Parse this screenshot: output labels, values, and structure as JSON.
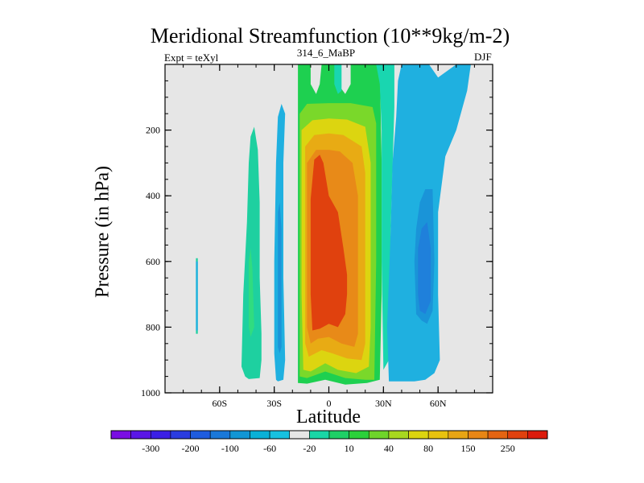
{
  "title": "Meridional Streamfunction (10**9kg/m-2)",
  "left_subtitle": "Expt = teXyl",
  "center_subtitle": "314_6_MaBP",
  "right_subtitle": "DJF",
  "chart_data": {
    "type": "heatmap",
    "subtype": "filled-contour",
    "xlabel": "Latitude",
    "ylabel": "Pressure (in hPa)",
    "xlim": [
      -90,
      90
    ],
    "ylim": [
      1000,
      0
    ],
    "x_ticks": [
      {
        "value": -60,
        "label": "60S"
      },
      {
        "value": -30,
        "label": "30S"
      },
      {
        "value": 0,
        "label": "0"
      },
      {
        "value": 30,
        "label": "30N"
      },
      {
        "value": 60,
        "label": "60N"
      }
    ],
    "y_ticks": [
      {
        "value": 200,
        "label": "200"
      },
      {
        "value": 400,
        "label": "400"
      },
      {
        "value": 600,
        "label": "600"
      },
      {
        "value": 800,
        "label": "800"
      },
      {
        "value": 1000,
        "label": "1000"
      }
    ],
    "background_color": "#e6e6e6",
    "colorbar": {
      "orientation": "horizontal",
      "levels": [
        "-300",
        "-200",
        "-100",
        "-60",
        "-20",
        "10",
        "40",
        "80",
        "150",
        "250"
      ],
      "colors": [
        "#7a0ee3",
        "#5a16e6",
        "#3b1fe5",
        "#2a3ce0",
        "#1f5cdf",
        "#1a78d9",
        "#1296d4",
        "#0ab1d6",
        "#17c1e0",
        "#e6e6e6",
        "#19d6a6",
        "#1ed066",
        "#2bd13a",
        "#6ed52a",
        "#a8d81f",
        "#dcd510",
        "#e8c20e",
        "#e8a514",
        "#e88615",
        "#e46412",
        "#e0410e",
        "#dc1b0c"
      ]
    },
    "contours": [
      {
        "name": "band-60S-outer",
        "color": "#1ed0a0",
        "points": [
          [
            -73,
            590
          ],
          [
            -72,
            590
          ],
          [
            -72,
            820
          ],
          [
            -73,
            820
          ]
        ]
      },
      {
        "name": "band-60S-inner",
        "color": "#1fb0e0",
        "points": [
          [
            -73,
            600
          ],
          [
            -72,
            600
          ],
          [
            -72,
            810
          ],
          [
            -73,
            810
          ]
        ]
      },
      {
        "name": "band-40S-outer",
        "color": "#1ed0a0",
        "points": [
          [
            -46,
            950
          ],
          [
            -48,
            920
          ],
          [
            -47,
            700
          ],
          [
            -45,
            480
          ],
          [
            -44,
            300
          ],
          [
            -43,
            220
          ],
          [
            -41,
            190
          ],
          [
            -39,
            260
          ],
          [
            -38,
            420
          ],
          [
            -38,
            650
          ],
          [
            -37,
            820
          ],
          [
            -37,
            900
          ],
          [
            -38,
            955
          ],
          [
            -44,
            958
          ]
        ]
      },
      {
        "name": "band-40S-inner",
        "color": "#30dc80",
        "points": [
          [
            -44,
            800
          ],
          [
            -44,
            600
          ],
          [
            -43,
            560
          ],
          [
            -42,
            620
          ],
          [
            -41,
            800
          ],
          [
            -43,
            830
          ]
        ]
      },
      {
        "name": "band-25S-outer",
        "color": "#1fb0e0",
        "points": [
          [
            -29,
            960
          ],
          [
            -30,
            880
          ],
          [
            -30,
            600
          ],
          [
            -29,
            300
          ],
          [
            -28,
            160
          ],
          [
            -26,
            120
          ],
          [
            -24,
            150
          ],
          [
            -25,
            300
          ],
          [
            -25,
            650
          ],
          [
            -24,
            900
          ],
          [
            -25,
            960
          ],
          [
            -28,
            965
          ]
        ]
      },
      {
        "name": "band-25S-inner",
        "color": "#1a94d8",
        "points": [
          [
            -28,
            860
          ],
          [
            -28,
            450
          ],
          [
            -27,
            420
          ],
          [
            -26,
            500
          ],
          [
            -26,
            860
          ],
          [
            -27,
            880
          ]
        ]
      },
      {
        "name": "tropical-green",
        "color": "#1ed050",
        "points": [
          [
            -17,
            0
          ],
          [
            -10,
            0
          ],
          [
            -10,
            60
          ],
          [
            -7,
            90
          ],
          [
            -5,
            60
          ],
          [
            -4,
            0
          ],
          [
            5,
            0
          ],
          [
            5,
            60
          ],
          [
            9,
            90
          ],
          [
            12,
            60
          ],
          [
            12,
            0
          ],
          [
            28,
            0
          ],
          [
            29,
            300
          ],
          [
            29,
            700
          ],
          [
            28,
            960
          ],
          [
            21,
            970
          ],
          [
            9,
            975
          ],
          [
            -2,
            960
          ],
          [
            -12,
            972
          ],
          [
            -17,
            970
          ],
          [
            -17,
            700
          ],
          [
            -17,
            300
          ]
        ]
      },
      {
        "name": "tropical-lime",
        "color": "#7ad82a",
        "points": [
          [
            -16,
            150
          ],
          [
            -12,
            120
          ],
          [
            0,
            118
          ],
          [
            12,
            118
          ],
          [
            24,
            130
          ],
          [
            26,
            180
          ],
          [
            26,
            600
          ],
          [
            25,
            960
          ],
          [
            20,
            960
          ],
          [
            9,
            955
          ],
          [
            -2,
            935
          ],
          [
            -12,
            955
          ],
          [
            -16,
            950
          ],
          [
            -16,
            600
          ]
        ]
      },
      {
        "name": "tropical-yellow",
        "color": "#dcd510",
        "points": [
          [
            -15,
            200
          ],
          [
            -9,
            170
          ],
          [
            0,
            165
          ],
          [
            10,
            168
          ],
          [
            20,
            190
          ],
          [
            23,
            300
          ],
          [
            23,
            800
          ],
          [
            22,
            920
          ],
          [
            15,
            940
          ],
          [
            5,
            930
          ],
          [
            -2,
            910
          ],
          [
            -10,
            935
          ],
          [
            -14,
            930
          ],
          [
            -15,
            700
          ]
        ]
      },
      {
        "name": "tropical-orange-1",
        "color": "#e8ab14",
        "points": [
          [
            -13,
            250
          ],
          [
            -8,
            215
          ],
          [
            0,
            210
          ],
          [
            8,
            215
          ],
          [
            18,
            250
          ],
          [
            20,
            330
          ],
          [
            20,
            850
          ],
          [
            18,
            900
          ],
          [
            10,
            895
          ],
          [
            2,
            880
          ],
          [
            -4,
            870
          ],
          [
            -11,
            890
          ],
          [
            -13,
            850
          ],
          [
            -13,
            600
          ]
        ]
      },
      {
        "name": "tropical-orange-2",
        "color": "#e88a18",
        "points": [
          [
            -12,
            300
          ],
          [
            -7,
            260
          ],
          [
            0,
            260
          ],
          [
            6,
            265
          ],
          [
            13,
            300
          ],
          [
            16,
            400
          ],
          [
            16,
            820
          ],
          [
            14,
            860
          ],
          [
            7,
            850
          ],
          [
            0,
            830
          ],
          [
            -6,
            835
          ],
          [
            -10,
            850
          ],
          [
            -12,
            800
          ]
        ]
      },
      {
        "name": "tropical-red",
        "color": "#e0410e",
        "points": [
          [
            -10,
            410
          ],
          [
            -8,
            290
          ],
          [
            -5,
            275
          ],
          [
            -3,
            300
          ],
          [
            0,
            400
          ],
          [
            5,
            450
          ],
          [
            8,
            560
          ],
          [
            10,
            640
          ],
          [
            10,
            700
          ],
          [
            9,
            760
          ],
          [
            5,
            800
          ],
          [
            0,
            790
          ],
          [
            -5,
            805
          ],
          [
            -9,
            810
          ],
          [
            -10,
            700
          ]
        ]
      },
      {
        "name": "nh-cyan-top",
        "color": "#19d6b0",
        "points": [
          [
            3,
            0
          ],
          [
            7,
            0
          ],
          [
            7,
            80
          ],
          [
            5,
            90
          ],
          [
            3,
            60
          ]
        ]
      },
      {
        "name": "nh-cyan-col",
        "color": "#19d6b0",
        "points": [
          [
            26,
            0
          ],
          [
            36,
            0
          ],
          [
            36,
            130
          ],
          [
            34,
            500
          ],
          [
            33,
            900
          ],
          [
            30,
            930
          ],
          [
            29,
            600
          ],
          [
            29,
            200
          ],
          [
            28,
            60
          ]
        ]
      },
      {
        "name": "nh-blue-outer",
        "color": "#1fb0e0",
        "points": [
          [
            40,
            0
          ],
          [
            55,
            0
          ],
          [
            60,
            40
          ],
          [
            70,
            0
          ],
          [
            78,
            0
          ],
          [
            76,
            80
          ],
          [
            70,
            200
          ],
          [
            64,
            280
          ],
          [
            60,
            450
          ],
          [
            60,
            700
          ],
          [
            61,
            900
          ],
          [
            58,
            940
          ],
          [
            53,
            960
          ],
          [
            47,
            965
          ],
          [
            33,
            965
          ],
          [
            32,
            800
          ],
          [
            34,
            500
          ],
          [
            35,
            300
          ],
          [
            37,
            160
          ],
          [
            38,
            50
          ]
        ]
      },
      {
        "name": "nh-blue-inner",
        "color": "#1a94d8",
        "points": [
          [
            47,
            600
          ],
          [
            48,
            500
          ],
          [
            50,
            420
          ],
          [
            53,
            380
          ],
          [
            57,
            380
          ],
          [
            58,
            600
          ],
          [
            57,
            750
          ],
          [
            54,
            790
          ],
          [
            51,
            780
          ],
          [
            48,
            760
          ]
        ]
      },
      {
        "name": "nh-blue-deep",
        "color": "#1f80db",
        "points": [
          [
            49,
            700
          ],
          [
            49,
            560
          ],
          [
            51,
            500
          ],
          [
            54,
            480
          ],
          [
            56,
            560
          ],
          [
            56,
            720
          ],
          [
            53,
            760
          ],
          [
            50,
            750
          ]
        ]
      }
    ]
  }
}
